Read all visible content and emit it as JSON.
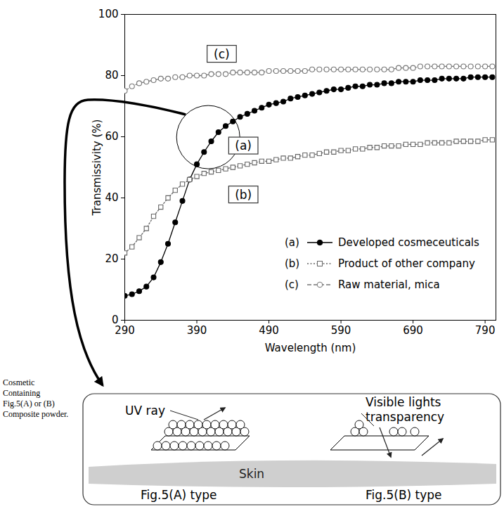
{
  "chart_data": {
    "type": "line",
    "x_label": "Wavelength (nm)",
    "y_label": "Transmissivity (%)",
    "x": [
      290,
      300,
      310,
      320,
      330,
      340,
      350,
      360,
      370,
      380,
      390,
      400,
      410,
      420,
      430,
      440,
      450,
      460,
      470,
      480,
      490,
      500,
      510,
      520,
      530,
      540,
      550,
      560,
      570,
      580,
      590,
      600,
      610,
      620,
      630,
      640,
      650,
      660,
      670,
      680,
      690,
      700,
      710,
      720,
      730,
      740,
      750,
      760,
      770,
      780,
      790,
      800
    ],
    "xlim": [
      290,
      805
    ],
    "xticks": [
      290,
      390,
      490,
      590,
      690,
      790
    ],
    "ylim": [
      0,
      100
    ],
    "yticks": [
      0,
      20,
      40,
      60,
      80,
      100
    ],
    "grid": false,
    "legend": "bottom-right",
    "series": [
      {
        "name": "Developed cosmeceuticals",
        "label": "(a)",
        "color": "#000000",
        "marker": "filled-circle",
        "line_style": "solid",
        "values": [
          8,
          8.5,
          9.5,
          11,
          14,
          19,
          25,
          32,
          39,
          46,
          51,
          55,
          58.5,
          61.5,
          63.5,
          65,
          66.5,
          67.5,
          68.5,
          69.5,
          70.5,
          71,
          71.5,
          72.5,
          73,
          73.5,
          74,
          74.5,
          75,
          75.5,
          75.5,
          76,
          76.5,
          76.5,
          77,
          77,
          77.5,
          77.5,
          78,
          78,
          78,
          78.5,
          78.5,
          78.5,
          79,
          79,
          79,
          79,
          79.5,
          79.5,
          79.5,
          79.5
        ]
      },
      {
        "name": "Product of other company",
        "label": "(b)",
        "color": "#666666",
        "marker": "open-square",
        "line_style": "dotted",
        "values": [
          22,
          24,
          27,
          30,
          34,
          37,
          40,
          42.5,
          44.5,
          46,
          47,
          48,
          48.5,
          49,
          49.5,
          50,
          50.5,
          51,
          51.5,
          52,
          52,
          52.5,
          53,
          53,
          53.5,
          54,
          54,
          54.5,
          55,
          55,
          55.5,
          55.5,
          56,
          56,
          56.5,
          56.5,
          57,
          57,
          57,
          57.5,
          57.5,
          57.5,
          58,
          58,
          58,
          58,
          58.5,
          58.5,
          58.5,
          58.5,
          59,
          59
        ]
      },
      {
        "name": "Raw material, mica",
        "label": "(c)",
        "color": "#777777",
        "marker": "open-circle",
        "line_style": "dashed",
        "values": [
          75,
          76.5,
          77.5,
          78,
          78.5,
          79,
          79,
          79.5,
          79.5,
          80,
          80,
          80,
          80.5,
          80.5,
          80.5,
          81,
          81,
          81,
          81,
          81,
          81.5,
          81.5,
          81.5,
          81.5,
          81.5,
          81.5,
          82,
          82,
          82,
          82,
          82,
          82,
          82,
          82,
          82,
          82,
          82,
          82,
          82.5,
          82.5,
          82.5,
          83,
          83,
          83,
          83,
          83,
          83,
          83,
          83,
          83,
          83,
          83
        ]
      }
    ],
    "annotations": [
      {
        "text": "(c)",
        "x": 425,
        "y": 87
      },
      {
        "text": "(a)",
        "x": 455,
        "y": 57
      },
      {
        "text": "(b)",
        "x": 455,
        "y": 41
      }
    ]
  },
  "diagram": {
    "side_note": [
      "Cosmetic",
      "Containing",
      "Fig.5(A) or (B)",
      "Composite powder."
    ],
    "uv_label": "UV ray",
    "visible_label": "Visible lights transparency",
    "skin_label": "Skin",
    "type_labels": [
      "Fig.5(A) type",
      "Fig.5(B) type"
    ]
  }
}
